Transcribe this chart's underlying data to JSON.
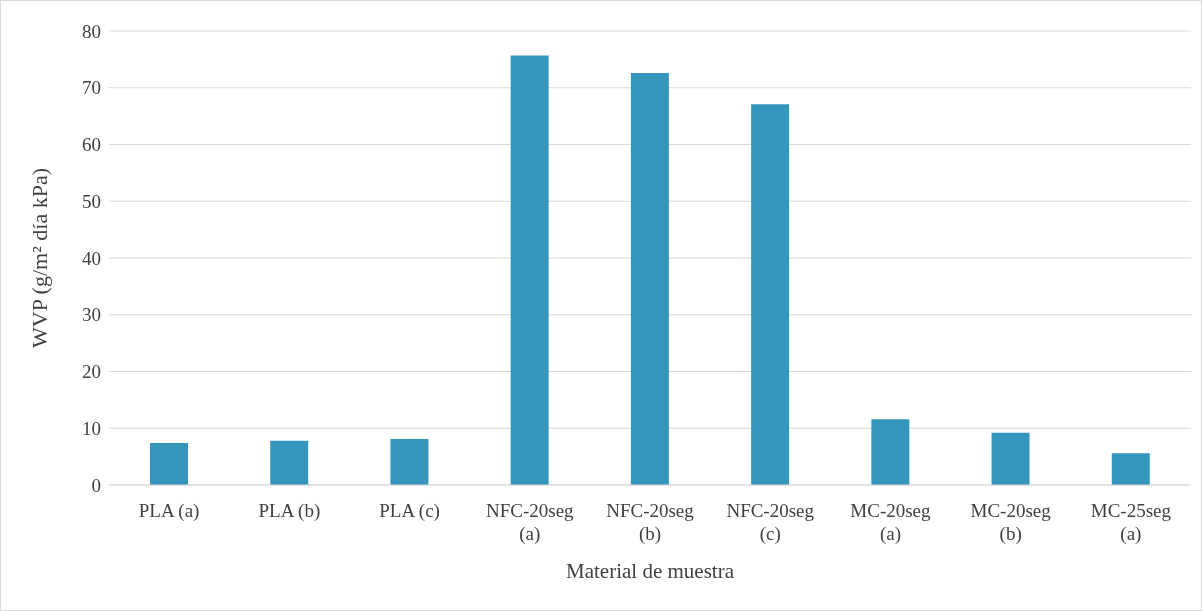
{
  "chart_data": {
    "type": "bar",
    "xlabel": "Material de muestra",
    "ylabel": "WVP (g/m² día kPa)",
    "categories": [
      "PLA (a)",
      "PLA (b)",
      "PLA (c)",
      "NFC-20seg (a)",
      "NFC-20seg (b)",
      "NFC-20seg (c)",
      "MC-20seg (a)",
      "MC-20seg (b)",
      "MC-25seg (a)"
    ],
    "values": [
      7.4,
      7.8,
      8.1,
      75.7,
      72.6,
      67.1,
      11.6,
      9.2,
      5.6
    ],
    "color": "#3596bd",
    "ylim": [
      0,
      80
    ],
    "yticks": [
      0,
      10,
      20,
      30,
      40,
      50,
      60,
      70,
      80
    ],
    "grid": "y",
    "legend": false
  }
}
